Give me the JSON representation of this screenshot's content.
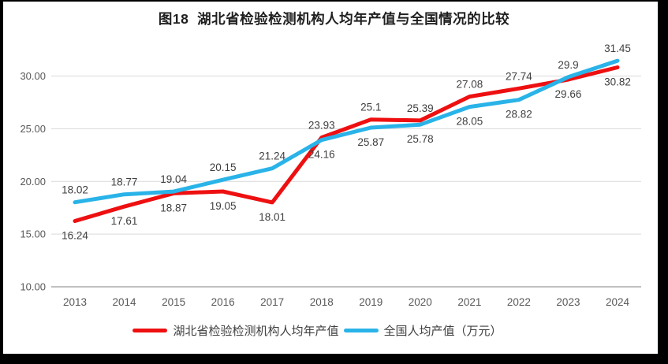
{
  "chart_data": {
    "type": "line",
    "title": "图18  湖北省检验检测机构人均年产值与全国情况的比较",
    "categories": [
      "2013",
      "2014",
      "2015",
      "2016",
      "2017",
      "2018",
      "2019",
      "2020",
      "2021",
      "2022",
      "2023",
      "2024"
    ],
    "series": [
      {
        "name": "湖北省检验检测机构人均年产值",
        "color": "#ee1011",
        "label_position": "below",
        "values": [
          16.24,
          17.61,
          18.87,
          19.05,
          18.01,
          24.16,
          25.87,
          25.78,
          28.05,
          28.82,
          29.66,
          30.82
        ]
      },
      {
        "name": "全国人均产值（万元）",
        "color": "#29b3e8",
        "label_position": "above",
        "values": [
          18.02,
          18.77,
          19.04,
          20.15,
          21.24,
          23.93,
          25.1,
          25.39,
          27.08,
          27.74,
          29.9,
          31.45
        ]
      }
    ],
    "xlabel": "",
    "ylabel": "",
    "ylim": [
      10,
      32.5
    ],
    "y_ticks": [
      "10.00",
      "15.00",
      "20.00",
      "25.00",
      "30.00"
    ],
    "grid": "horizontal-only",
    "legend_position": "bottom"
  },
  "style": {
    "frame_color": "#000000",
    "background": "#ffffff",
    "gridline_color": "#d9d9d9",
    "axis_line_color": "#c0c0c0",
    "tick_label_color": "#595959",
    "data_label_color": "#3f3f3f",
    "title_color": "#1f1f1f",
    "legend_text_color": "#404040"
  }
}
